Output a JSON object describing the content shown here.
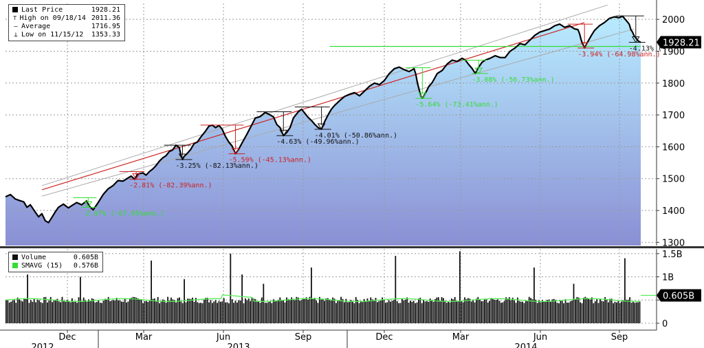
{
  "colors": {
    "area_top": "#b8ecff",
    "area_bottom": "#8a8fd4",
    "price_line": "#000000",
    "trend_red": "#cc2222",
    "channel": "#aaaaaa",
    "green": "#33dd33",
    "grid": "#999999",
    "volume_bar": "#111111",
    "sma": "#55ee55"
  },
  "price_legend": {
    "items": [
      {
        "symbol": "last",
        "label": "Last Price",
        "value": "1928.21"
      },
      {
        "symbol": "high",
        "label": "High on 09/18/14",
        "value": "2011.36"
      },
      {
        "symbol": "avg",
        "label": "Average",
        "value": "1716.95"
      },
      {
        "symbol": "low",
        "label": "Low on 11/15/12",
        "value": "1353.33"
      }
    ]
  },
  "volume_legend": {
    "items": [
      {
        "label": "Volume",
        "value": "0.605B",
        "color": "#111111"
      },
      {
        "label": "SMAVG (15)",
        "value": "0.576B",
        "color": "#33dd33"
      }
    ]
  },
  "chart_data": [
    {
      "type": "line",
      "name": "price",
      "ylim": [
        1290,
        2050
      ],
      "y_ticks": [
        1300,
        1400,
        1500,
        1600,
        1700,
        1800,
        1900,
        2000
      ],
      "last_value_label": "1928.21",
      "x_month_labels": [
        "Dec",
        "Mar",
        "Jun",
        "Sep",
        "Dec",
        "Mar",
        "Jun",
        "Sep"
      ],
      "x_year_labels": [
        "2012",
        "2013",
        "2014"
      ],
      "points": [
        [
          0,
          1443
        ],
        [
          3,
          1450
        ],
        [
          6,
          1436
        ],
        [
          8,
          1432
        ],
        [
          11,
          1427
        ],
        [
          13,
          1410
        ],
        [
          15,
          1418
        ],
        [
          18,
          1395
        ],
        [
          20,
          1380
        ],
        [
          22,
          1390
        ],
        [
          24,
          1368
        ],
        [
          26,
          1362
        ],
        [
          28,
          1378
        ],
        [
          30,
          1395
        ],
        [
          32,
          1410
        ],
        [
          35,
          1420
        ],
        [
          38,
          1408
        ],
        [
          40,
          1415
        ],
        [
          43,
          1425
        ],
        [
          46,
          1418
        ],
        [
          49,
          1430
        ],
        [
          51,
          1412
        ],
        [
          53,
          1402
        ],
        [
          56,
          1425
        ],
        [
          59,
          1450
        ],
        [
          62,
          1468
        ],
        [
          65,
          1478
        ],
        [
          68,
          1494
        ],
        [
          71,
          1492
        ],
        [
          74,
          1502
        ],
        [
          76,
          1508
        ],
        [
          78,
          1498
        ],
        [
          80,
          1515
        ],
        [
          83,
          1518
        ],
        [
          85,
          1511
        ],
        [
          87,
          1522
        ],
        [
          89,
          1530
        ],
        [
          91,
          1541
        ],
        [
          93,
          1555
        ],
        [
          95,
          1565
        ],
        [
          97,
          1572
        ],
        [
          99,
          1585
        ],
        [
          101,
          1590
        ],
        [
          103,
          1605
        ],
        [
          105,
          1598
        ],
        [
          106,
          1575
        ],
        [
          107,
          1560
        ],
        [
          108,
          1570
        ],
        [
          110,
          1580
        ],
        [
          112,
          1592
        ],
        [
          114,
          1610
        ],
        [
          116,
          1615
        ],
        [
          118,
          1630
        ],
        [
          121,
          1650
        ],
        [
          123,
          1665
        ],
        [
          125,
          1668
        ],
        [
          127,
          1660
        ],
        [
          129,
          1667
        ],
        [
          131,
          1655
        ],
        [
          133,
          1632
        ],
        [
          135,
          1615
        ],
        [
          137,
          1602
        ],
        [
          139,
          1578
        ],
        [
          141,
          1593
        ],
        [
          143,
          1612
        ],
        [
          146,
          1640
        ],
        [
          148,
          1660
        ],
        [
          151,
          1690
        ],
        [
          154,
          1695
        ],
        [
          157,
          1708
        ],
        [
          160,
          1700
        ],
        [
          162,
          1694
        ],
        [
          164,
          1670
        ],
        [
          166,
          1660
        ],
        [
          168,
          1635
        ],
        [
          170,
          1645
        ],
        [
          172,
          1660
        ],
        [
          174,
          1690
        ],
        [
          177,
          1710
        ],
        [
          179,
          1718
        ],
        [
          181,
          1705
        ],
        [
          183,
          1692
        ],
        [
          185,
          1682
        ],
        [
          187,
          1670
        ],
        [
          189,
          1660
        ],
        [
          191,
          1655
        ],
        [
          193,
          1680
        ],
        [
          195,
          1700
        ],
        [
          197,
          1718
        ],
        [
          199,
          1730
        ],
        [
          202,
          1745
        ],
        [
          205,
          1758
        ],
        [
          208,
          1765
        ],
        [
          211,
          1770
        ],
        [
          214,
          1760
        ],
        [
          217,
          1775
        ],
        [
          220,
          1790
        ],
        [
          223,
          1800
        ],
        [
          226,
          1795
        ],
        [
          229,
          1808
        ],
        [
          232,
          1830
        ],
        [
          235,
          1845
        ],
        [
          238,
          1850
        ],
        [
          241,
          1842
        ],
        [
          244,
          1836
        ],
        [
          247,
          1845
        ],
        [
          248,
          1828
        ],
        [
          249,
          1800
        ],
        [
          250,
          1780
        ],
        [
          251,
          1760
        ],
        [
          252,
          1752
        ],
        [
          254,
          1770
        ],
        [
          256,
          1790
        ],
        [
          258,
          1802
        ],
        [
          261,
          1830
        ],
        [
          264,
          1840
        ],
        [
          267,
          1860
        ],
        [
          270,
          1872
        ],
        [
          273,
          1868
        ],
        [
          276,
          1878
        ],
        [
          278,
          1872
        ],
        [
          280,
          1858
        ],
        [
          282,
          1846
        ],
        [
          284,
          1830
        ],
        [
          286,
          1850
        ],
        [
          288,
          1865
        ],
        [
          290,
          1872
        ],
        [
          293,
          1878
        ],
        [
          296,
          1886
        ],
        [
          299,
          1880
        ],
        [
          302,
          1880
        ],
        [
          305,
          1900
        ],
        [
          308,
          1910
        ],
        [
          311,
          1924
        ],
        [
          314,
          1920
        ],
        [
          317,
          1935
        ],
        [
          320,
          1950
        ],
        [
          323,
          1960
        ],
        [
          326,
          1965
        ],
        [
          329,
          1970
        ],
        [
          332,
          1980
        ],
        [
          335,
          1985
        ],
        [
          338,
          1975
        ],
        [
          341,
          1980
        ],
        [
          344,
          1970
        ],
        [
          346,
          1968
        ],
        [
          347,
          1955
        ],
        [
          348,
          1935
        ],
        [
          349,
          1922
        ],
        [
          350,
          1910
        ],
        [
          352,
          1930
        ],
        [
          354,
          1948
        ],
        [
          356,
          1965
        ],
        [
          359,
          1980
        ],
        [
          362,
          1990
        ],
        [
          365,
          2003
        ],
        [
          368,
          2008
        ],
        [
          371,
          2005
        ],
        [
          373,
          2010
        ],
        [
          375,
          1998
        ],
        [
          377,
          1985
        ],
        [
          378,
          1968
        ],
        [
          379,
          1960
        ],
        [
          380,
          1948
        ],
        [
          381,
          1942
        ],
        [
          382,
          1935
        ],
        [
          383,
          1930
        ],
        [
          384,
          1928.21
        ]
      ],
      "trend_red": [
        [
          22,
          1465
        ],
        [
          350,
          1990
        ]
      ],
      "channel_upper": [
        [
          22,
          1478
        ],
        [
          364,
          2045
        ]
      ],
      "channel_lower": [
        [
          22,
          1445
        ],
        [
          380,
          1970
        ]
      ],
      "support_line": {
        "y": 1915,
        "x_range": [
          196,
          384
        ]
      },
      "drawdowns": [
        {
          "x": 45,
          "x_to": 50,
          "y_top": 1440,
          "y_bottom": 1410,
          "label": "-2.97% (-67.95%ann.)",
          "color": "#33dd33"
        },
        {
          "x": 73,
          "x_to": 79,
          "y_top": 1522,
          "y_bottom": 1498,
          "label": "-2.81% (-82.39%ann.)",
          "color": "#cc2222"
        },
        {
          "x": 100,
          "x_to": 107,
          "y_top": 1605,
          "y_bottom": 1560,
          "label": "-3.25% (-82.13%ann.)",
          "color": "#111111"
        },
        {
          "x": 122,
          "x_to": 139,
          "y_top": 1668,
          "y_bottom": 1578,
          "label": "-5.59% (-45.13%ann.)",
          "color": "#cc2222"
        },
        {
          "x": 156,
          "x_to": 168,
          "y_top": 1710,
          "y_bottom": 1635,
          "label": "-4.63% (-49.96%ann.)",
          "color": "#111111"
        },
        {
          "x": 179,
          "x_to": 191,
          "y_top": 1725,
          "y_bottom": 1655,
          "label": "-4.01% (-50.86%ann.)",
          "color": "#111111"
        },
        {
          "x": 246,
          "x_to": 252,
          "y_top": 1848,
          "y_bottom": 1752,
          "label": "-5.64% (-73.41%ann.)",
          "color": "#33dd33"
        },
        {
          "x": 280,
          "x_to": 286,
          "y_top": 1872,
          "y_bottom": 1830,
          "label": "-3.08% (-56.73%ann.)",
          "color": "#33dd33"
        },
        {
          "x": 344,
          "x_to": 350,
          "y_top": 1985,
          "y_bottom": 1910,
          "label": "-3.94% (-64.98%ann.)",
          "color": "#cc2222"
        },
        {
          "x": 373,
          "x_to": 381,
          "y_top": 2011,
          "y_bottom": 1928,
          "label": "-4.13% (-",
          "color": "#111111"
        }
      ]
    },
    {
      "type": "bar",
      "name": "volume",
      "ylim": [
        0,
        1.6
      ],
      "y_ticks": [
        {
          "v": 0,
          "label": "0"
        },
        {
          "v": 0.5,
          "label": "0.5B"
        },
        {
          "v": 1,
          "label": "1B"
        },
        {
          "v": 1.5,
          "label": "1.5B"
        }
      ],
      "last_value_label": "0.605B",
      "count": 385,
      "base": 0.5,
      "noise": 0.07,
      "spikes": [
        [
          13,
          1.05
        ],
        [
          45,
          1.0
        ],
        [
          88,
          1.35
        ],
        [
          108,
          0.95
        ],
        [
          136,
          1.5
        ],
        [
          143,
          1.05
        ],
        [
          156,
          0.85
        ],
        [
          185,
          1.2
        ],
        [
          236,
          1.45
        ],
        [
          275,
          1.55
        ],
        [
          320,
          1.2
        ],
        [
          344,
          0.85
        ],
        [
          375,
          1.4
        ]
      ],
      "sma_level": 0.5
    }
  ]
}
